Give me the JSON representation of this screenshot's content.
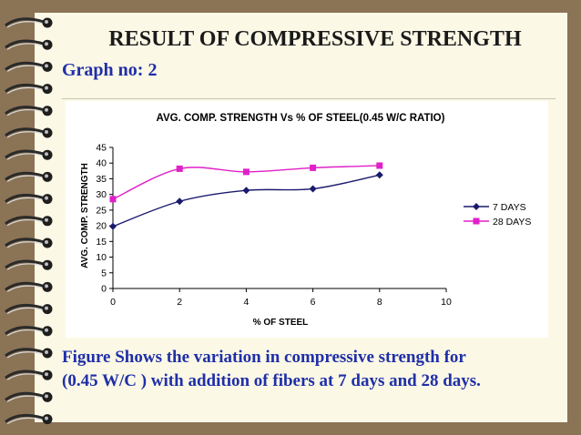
{
  "slide": {
    "title": "RESULT OF COMPRESSIVE STRENGTH",
    "subtitle": "Graph no: 2",
    "caption_line1": "Figure Shows the variation in compressive strength for",
    "caption_line2": "(0.45 W/C ) with addition of fibers at 7 days and 28 days."
  },
  "colors": {
    "title": "#1a1a1a",
    "subtitle": "#1f2fa8",
    "caption": "#1f2fa8",
    "background": "#8b7355",
    "paper": "#fbf8e6"
  },
  "chart_data": {
    "type": "line",
    "title": "AVG. COMP. STRENGTH Vs % OF STEEL(0.45 W/C RATIO)",
    "xlabel": "% OF STEEL",
    "ylabel": "AVG. COMP. STRENGTH",
    "xlim": [
      0,
      10
    ],
    "ylim": [
      0,
      45
    ],
    "xticks": [
      0,
      2,
      4,
      6,
      8,
      10
    ],
    "yticks": [
      0,
      5,
      10,
      15,
      20,
      25,
      30,
      35,
      40,
      45
    ],
    "grid": false,
    "legend_position": "right",
    "series": [
      {
        "name": "7 DAYS",
        "color": "#1a1a6e",
        "marker": "diamond",
        "x": [
          0,
          2,
          4,
          6,
          8
        ],
        "y": [
          19.8,
          27.8,
          31.3,
          31.8,
          36.2
        ]
      },
      {
        "name": "28 DAYS",
        "color": "#e020c8",
        "marker": "square",
        "x": [
          0,
          2,
          4,
          6,
          8
        ],
        "y": [
          28.5,
          38.2,
          37.2,
          38.5,
          39.2
        ]
      }
    ]
  }
}
